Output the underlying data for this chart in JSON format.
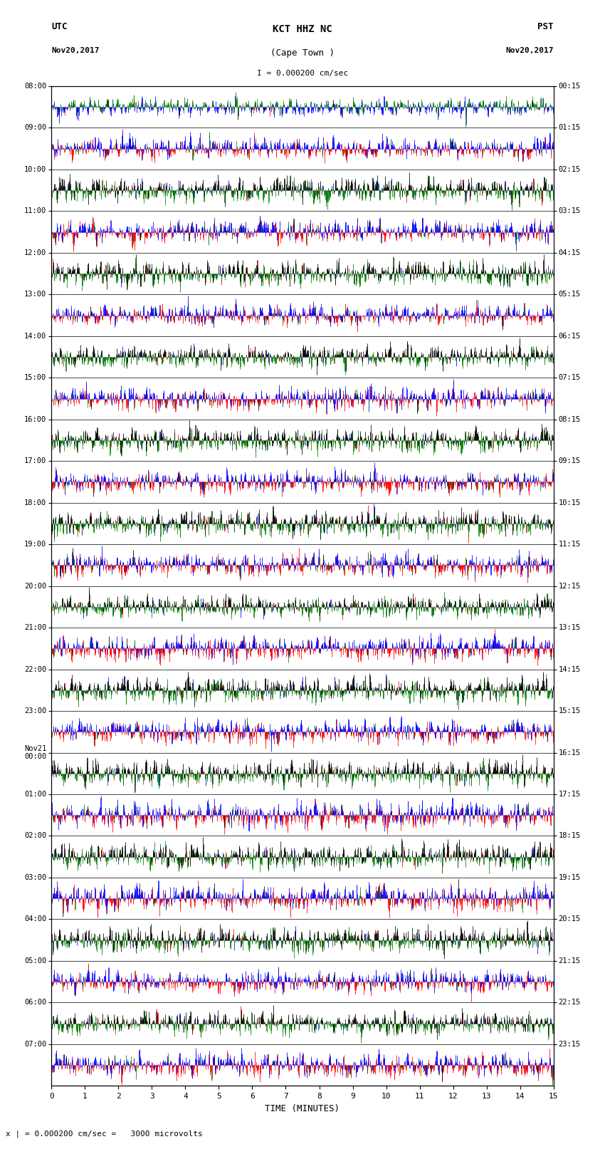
{
  "title_line1": "KCT HHZ NC",
  "title_line2": "(Cape Town )",
  "scale_label": "I = 0.000200 cm/sec",
  "utc_label": "UTC",
  "utc_date": "Nov20,2017",
  "pst_label": "PST",
  "pst_date": "Nov20,2017",
  "xlabel": "TIME (MINUTES)",
  "bottom_note": "x | = 0.000200 cm/sec =   3000 microvolts",
  "left_yticks": [
    "08:00",
    "09:00",
    "10:00",
    "11:00",
    "12:00",
    "13:00",
    "14:00",
    "15:00",
    "16:00",
    "17:00",
    "18:00",
    "19:00",
    "20:00",
    "21:00",
    "22:00",
    "23:00",
    "Nov21\n00:00",
    "01:00",
    "02:00",
    "03:00",
    "04:00",
    "05:00",
    "06:00",
    "07:00"
  ],
  "right_yticks": [
    "00:15",
    "01:15",
    "02:15",
    "03:15",
    "04:15",
    "05:15",
    "06:15",
    "07:15",
    "08:15",
    "09:15",
    "10:15",
    "11:15",
    "12:15",
    "13:15",
    "14:15",
    "15:15",
    "16:15",
    "17:15",
    "18:15",
    "19:15",
    "20:15",
    "21:15",
    "22:15",
    "23:15"
  ],
  "n_rows": 24,
  "minutes_per_row": 15,
  "xticks": [
    0,
    1,
    2,
    3,
    4,
    5,
    6,
    7,
    8,
    9,
    10,
    11,
    12,
    13,
    14,
    15
  ],
  "background_color": "#ffffff",
  "seed": 42,
  "row_color_pairs": [
    [
      "#ff0000",
      "#0000ff"
    ],
    [
      "#008000",
      "#000000"
    ],
    [
      "#ff0000",
      "#0000ff"
    ],
    [
      "#008000",
      "#000000"
    ],
    [
      "#ff0000",
      "#0000ff"
    ],
    [
      "#008000",
      "#000000"
    ],
    [
      "#ff0000",
      "#0000ff"
    ],
    [
      "#008000",
      "#000000"
    ],
    [
      "#ff0000",
      "#0000ff"
    ],
    [
      "#008000",
      "#000000"
    ],
    [
      "#ff0000",
      "#0000ff"
    ],
    [
      "#008000",
      "#000000"
    ],
    [
      "#ff0000",
      "#0000ff"
    ],
    [
      "#008000",
      "#000000"
    ],
    [
      "#ff0000",
      "#0000ff"
    ],
    [
      "#008000",
      "#000000"
    ],
    [
      "#ff0000",
      "#0000ff"
    ],
    [
      "#008000",
      "#000000"
    ],
    [
      "#ff0000",
      "#0000ff"
    ],
    [
      "#008000",
      "#000000"
    ],
    [
      "#ff0000",
      "#0000ff"
    ],
    [
      "#008000",
      "#000000"
    ],
    [
      "#ff0000",
      "#0000ff"
    ],
    [
      "#0000ff",
      "#008000"
    ]
  ]
}
